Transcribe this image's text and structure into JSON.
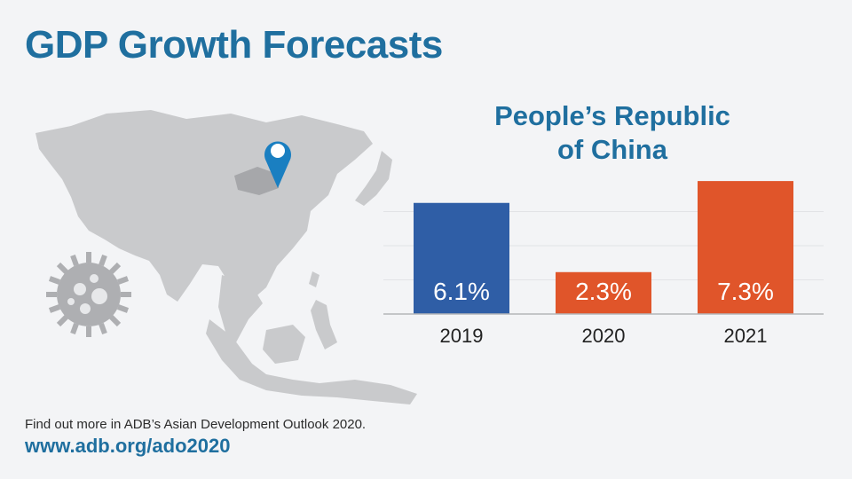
{
  "title": "GDP Growth Forecasts",
  "subtitle_lines": [
    "People’s Republic",
    "of China"
  ],
  "footer": {
    "text": "Find out more in ADB’s Asian Development Outlook 2020.",
    "url": "www.adb.org/ado2020"
  },
  "map": {
    "pin_icon": "location-pin-icon",
    "virus_icon": "coronavirus-icon"
  },
  "colors": {
    "title": "#1f6f9f",
    "bar_2019": "#2f5ea6",
    "bar_forecast": "#e0552a",
    "map": "#c9cacc"
  },
  "chart_data": {
    "type": "bar",
    "categories": [
      "2019",
      "2020",
      "2021"
    ],
    "values": [
      6.1,
      2.3,
      7.3
    ],
    "value_labels": [
      "6.1%",
      "2.3%",
      "7.3%"
    ],
    "colors": [
      "#2f5ea6",
      "#e0552a",
      "#e0552a"
    ],
    "title": "People’s Republic of China",
    "xlabel": "",
    "ylabel": "",
    "ylim": [
      0,
      7.5
    ],
    "grid": true
  }
}
